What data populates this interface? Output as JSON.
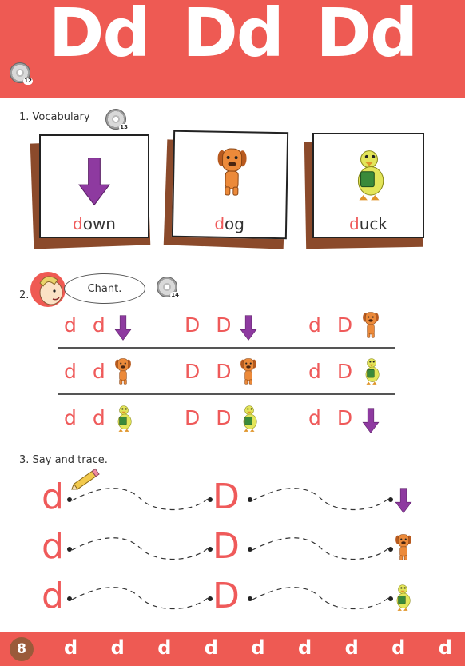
{
  "header": {
    "letters": [
      "Dd",
      "Dd",
      "Dd"
    ],
    "cd_track": "12"
  },
  "section1": {
    "title": "1. Vocabulary",
    "cd_track": "13",
    "cards": [
      {
        "first": "d",
        "rest": "own",
        "icon": "arrow-down"
      },
      {
        "first": "d",
        "rest": "og",
        "icon": "dog"
      },
      {
        "first": "d",
        "rest": "uck",
        "icon": "duck"
      }
    ]
  },
  "section2": {
    "number": "2.",
    "bubble": "Chant.",
    "cd_track": "14",
    "rows": [
      [
        {
          "text": "d d",
          "icon": "arrow-down"
        },
        {
          "text": "D D",
          "icon": "arrow-down"
        },
        {
          "text": "d D",
          "icon": "dog"
        }
      ],
      [
        {
          "text": "d d",
          "icon": "dog"
        },
        {
          "text": "D D",
          "icon": "dog"
        },
        {
          "text": "d D",
          "icon": "duck"
        }
      ],
      [
        {
          "text": "d d",
          "icon": "duck"
        },
        {
          "text": "D D",
          "icon": "duck"
        },
        {
          "text": "d D",
          "icon": "arrow-down"
        }
      ]
    ]
  },
  "section3": {
    "title": "3. Say and trace.",
    "rows": [
      {
        "start": "d",
        "mid": "D",
        "icon": "arrow-down"
      },
      {
        "start": "d",
        "mid": "D",
        "icon": "dog"
      },
      {
        "start": "d",
        "mid": "D",
        "icon": "duck"
      }
    ]
  },
  "footer": {
    "page": "8",
    "letters": [
      "d",
      "d",
      "d",
      "d",
      "d",
      "d",
      "d",
      "d",
      "d"
    ]
  },
  "colors": {
    "brand_red": "#ee5a53",
    "letter_red": "#ef5a5a",
    "arrow_purple": "#8e3aa0",
    "dog_orange": "#ec8a3a",
    "duck_yellow": "#e3e55a"
  }
}
